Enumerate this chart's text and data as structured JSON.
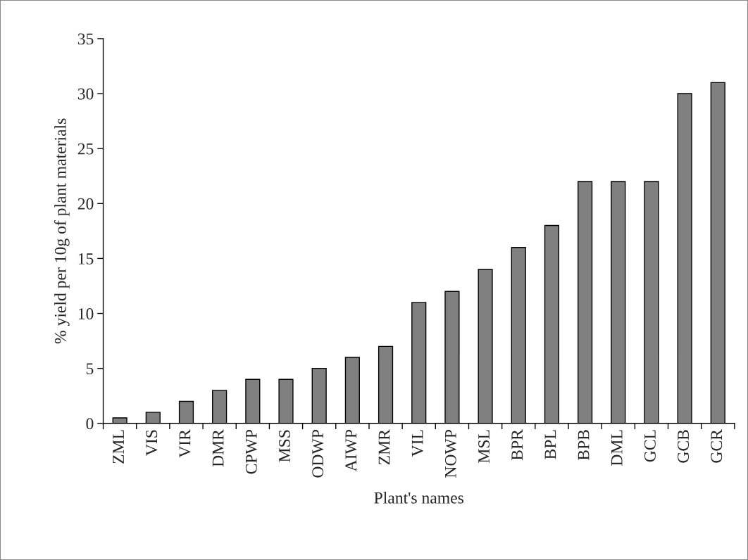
{
  "chart_data": {
    "type": "bar",
    "xlabel": "Plant's names",
    "ylabel": "% yield per 10g of plant materials",
    "categories": [
      "ZML",
      "VIS",
      "VIR",
      "DMR",
      "CPWP",
      "MSS",
      "ODWP",
      "AIWP",
      "ZMR",
      "VIL",
      "NOWP",
      "MSL",
      "BPR",
      "BPL",
      "BPB",
      "DML",
      "GCL",
      "GCB",
      "GCR"
    ],
    "values": [
      0.5,
      1,
      2,
      3,
      4,
      4,
      5,
      6,
      7,
      11,
      12,
      14,
      16,
      18,
      22,
      22,
      22,
      30,
      31
    ],
    "color": "#808080",
    "ylim": [
      0,
      35
    ],
    "yticks": [
      0,
      5,
      10,
      15,
      20,
      25,
      30,
      35
    ],
    "grid": false
  }
}
